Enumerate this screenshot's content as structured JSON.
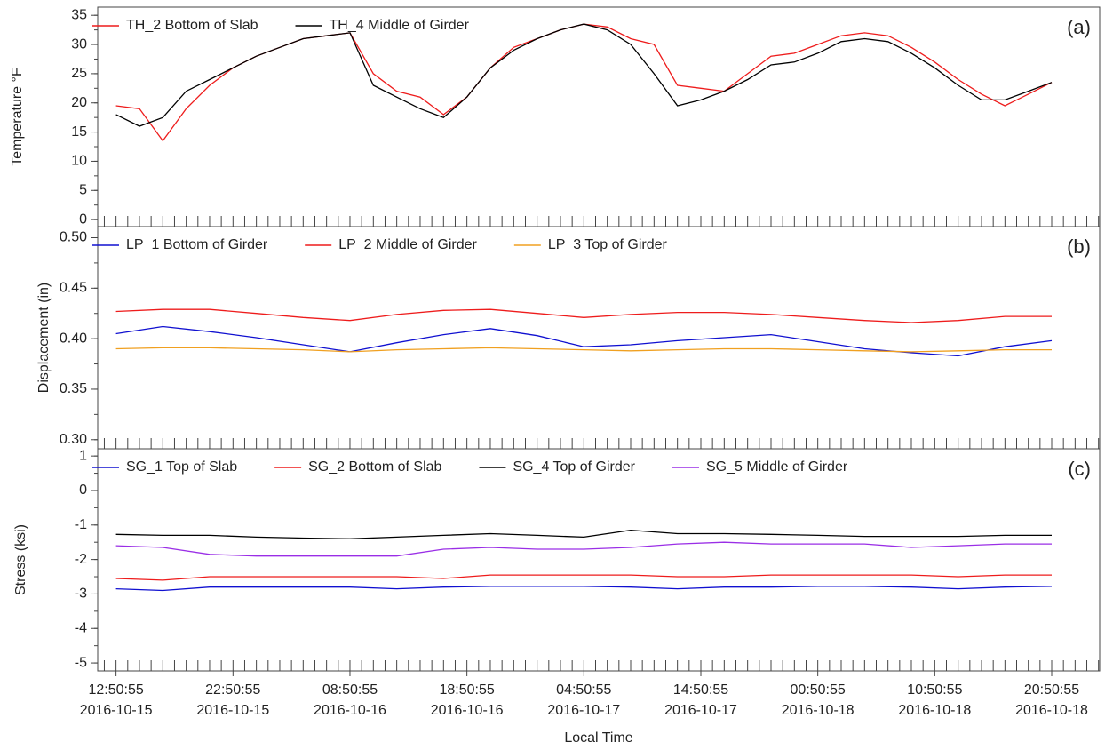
{
  "chart_data": [
    {
      "type": "line",
      "ylabel": "Temperature °F",
      "annotation": "(a)",
      "xlim": [
        "2016-10-15 11:16:55",
        "2016-10-19 00:56:55"
      ],
      "xminor_step_hours": 1,
      "ylim": [
        -1.2,
        36.4
      ],
      "yticks": [
        0,
        5,
        10,
        15,
        20,
        25,
        30,
        35
      ],
      "yminor_step": 2.5,
      "x": [
        "2016-10-15 12:50:55",
        "2016-10-15 14:50:55",
        "2016-10-15 16:50:55",
        "2016-10-15 18:50:55",
        "2016-10-15 20:50:55",
        "2016-10-15 22:50:55",
        "2016-10-16 00:50:55",
        "2016-10-16 02:50:55",
        "2016-10-16 04:50:55",
        "2016-10-16 06:50:55",
        "2016-10-16 08:50:55",
        "2016-10-16 10:50:55",
        "2016-10-16 12:50:55",
        "2016-10-16 14:50:55",
        "2016-10-16 16:50:55",
        "2016-10-16 18:50:55",
        "2016-10-16 20:50:55",
        "2016-10-16 22:50:55",
        "2016-10-17 00:50:55",
        "2016-10-17 02:50:55",
        "2016-10-17 04:50:55",
        "2016-10-17 06:50:55",
        "2016-10-17 08:50:55",
        "2016-10-17 10:50:55",
        "2016-10-17 12:50:55",
        "2016-10-17 14:50:55",
        "2016-10-17 16:50:55",
        "2016-10-17 18:50:55",
        "2016-10-17 20:50:55",
        "2016-10-17 22:50:55",
        "2016-10-18 00:50:55",
        "2016-10-18 02:50:55",
        "2016-10-18 04:50:55",
        "2016-10-18 06:50:55",
        "2016-10-18 08:50:55",
        "2016-10-18 10:50:55",
        "2016-10-18 12:50:55",
        "2016-10-18 14:50:55",
        "2016-10-18 16:50:55",
        "2016-10-18 18:50:55",
        "2016-10-18 20:50:55"
      ],
      "series": [
        {
          "name": "TH_2 Bottom of Slab",
          "color": "#ee1c1c",
          "values": [
            19.5,
            19,
            13.5,
            19,
            23,
            26,
            28,
            29.5,
            31,
            31.5,
            32,
            25,
            22,
            21,
            18,
            21,
            26,
            29.5,
            31,
            32.5,
            33.5,
            33,
            31,
            30,
            23,
            22.5,
            22,
            25,
            28,
            28.5,
            30,
            31.5,
            32,
            31.5,
            29.5,
            27,
            24,
            21.5,
            19.5,
            21.5,
            23.5
          ]
        },
        {
          "name": "TH_4 Middle of Girder",
          "color": "#000000",
          "values": [
            18,
            16,
            17.5,
            22,
            24,
            26,
            28,
            29.5,
            31,
            31.5,
            32,
            23,
            21,
            19,
            17.5,
            21,
            26,
            29,
            31,
            32.5,
            33.5,
            32.5,
            30,
            25,
            19.5,
            20.5,
            22,
            24,
            26.5,
            27,
            28.5,
            30.5,
            31,
            30.5,
            28.5,
            26,
            23,
            20.5,
            20.5,
            22,
            23.5
          ]
        }
      ]
    },
    {
      "type": "line",
      "ylabel": "Displacement (in)",
      "annotation": "(b)",
      "xlim": [
        "2016-10-15 11:16:55",
        "2016-10-19 00:56:55"
      ],
      "xminor_step_hours": 1,
      "ylim": [
        0.291,
        0.511
      ],
      "yticks": [
        {
          "value": 0.3,
          "label": "0.30"
        },
        {
          "value": 0.35,
          "label": "0.35"
        },
        {
          "value": 0.4,
          "label": "0.40"
        },
        {
          "value": 0.45,
          "label": "0.45"
        },
        {
          "value": 0.5,
          "label": "0.50"
        }
      ],
      "yminor_step": 0.025,
      "x": [
        "2016-10-15 12:50:55",
        "2016-10-15 16:50:55",
        "2016-10-15 20:50:55",
        "2016-10-16 00:50:55",
        "2016-10-16 04:50:55",
        "2016-10-16 08:50:55",
        "2016-10-16 12:50:55",
        "2016-10-16 16:50:55",
        "2016-10-16 20:50:55",
        "2016-10-17 00:50:55",
        "2016-10-17 04:50:55",
        "2016-10-17 08:50:55",
        "2016-10-17 12:50:55",
        "2016-10-17 16:50:55",
        "2016-10-17 20:50:55",
        "2016-10-18 00:50:55",
        "2016-10-18 04:50:55",
        "2016-10-18 08:50:55",
        "2016-10-18 12:50:55",
        "2016-10-18 16:50:55",
        "2016-10-18 20:50:55"
      ],
      "series": [
        {
          "name": "LP_1 Bottom of Girder",
          "color": "#1010d0",
          "values": [
            0.405,
            0.412,
            0.407,
            0.401,
            0.394,
            0.387,
            0.396,
            0.404,
            0.41,
            0.403,
            0.392,
            0.394,
            0.398,
            0.401,
            0.404,
            0.397,
            0.39,
            0.386,
            0.383,
            0.392,
            0.398
          ]
        },
        {
          "name": "LP_2 Middle of Girder",
          "color": "#ee1c1c",
          "values": [
            0.427,
            0.429,
            0.429,
            0.425,
            0.421,
            0.418,
            0.424,
            0.428,
            0.429,
            0.425,
            0.421,
            0.424,
            0.426,
            0.426,
            0.424,
            0.421,
            0.418,
            0.416,
            0.418,
            0.422,
            0.422
          ]
        },
        {
          "name": "LP_3 Top of Girder",
          "color": "#f0a020",
          "values": [
            0.39,
            0.391,
            0.391,
            0.39,
            0.389,
            0.387,
            0.389,
            0.39,
            0.391,
            0.39,
            0.389,
            0.388,
            0.389,
            0.39,
            0.39,
            0.389,
            0.388,
            0.387,
            0.388,
            0.389,
            0.389
          ]
        }
      ]
    },
    {
      "type": "line",
      "ylabel": "Stress (ksi)",
      "annotation": "(c)",
      "xlabel": "Local Time",
      "xlim": [
        "2016-10-15 11:16:55",
        "2016-10-19 00:56:55"
      ],
      "xminor_step_hours": 1,
      "xticks": [
        {
          "value": "2016-10-15 12:50:55",
          "label": [
            "12:50:55",
            "2016-10-15"
          ]
        },
        {
          "value": "2016-10-15 22:50:55",
          "label": [
            "22:50:55",
            "2016-10-15"
          ]
        },
        {
          "value": "2016-10-16 08:50:55",
          "label": [
            "08:50:55",
            "2016-10-16"
          ]
        },
        {
          "value": "2016-10-16 18:50:55",
          "label": [
            "18:50:55",
            "2016-10-16"
          ]
        },
        {
          "value": "2016-10-17 04:50:55",
          "label": [
            "04:50:55",
            "2016-10-17"
          ]
        },
        {
          "value": "2016-10-17 14:50:55",
          "label": [
            "14:50:55",
            "2016-10-17"
          ]
        },
        {
          "value": "2016-10-18 00:50:55",
          "label": [
            "00:50:55",
            "2016-10-18"
          ]
        },
        {
          "value": "2016-10-18 10:50:55",
          "label": [
            "10:50:55",
            "2016-10-18"
          ]
        },
        {
          "value": "2016-10-18 20:50:55",
          "label": [
            "20:50:55",
            "2016-10-18"
          ]
        }
      ],
      "ylim": [
        -5.23,
        1.21
      ],
      "yticks": [
        -5,
        -4,
        -3,
        -2,
        -1,
        0,
        1
      ],
      "yminor_step": 0.5,
      "x": [
        "2016-10-15 12:50:55",
        "2016-10-15 16:50:55",
        "2016-10-15 20:50:55",
        "2016-10-16 00:50:55",
        "2016-10-16 04:50:55",
        "2016-10-16 08:50:55",
        "2016-10-16 12:50:55",
        "2016-10-16 16:50:55",
        "2016-10-16 20:50:55",
        "2016-10-17 00:50:55",
        "2016-10-17 04:50:55",
        "2016-10-17 08:50:55",
        "2016-10-17 12:50:55",
        "2016-10-17 16:50:55",
        "2016-10-17 20:50:55",
        "2016-10-18 00:50:55",
        "2016-10-18 04:50:55",
        "2016-10-18 08:50:55",
        "2016-10-18 12:50:55",
        "2016-10-18 16:50:55",
        "2016-10-18 20:50:55"
      ],
      "series": [
        {
          "name": "SG_1 Top of Slab",
          "color": "#1010d0",
          "values": [
            -2.85,
            -2.9,
            -2.8,
            -2.8,
            -2.8,
            -2.8,
            -2.85,
            -2.8,
            -2.78,
            -2.78,
            -2.78,
            -2.8,
            -2.85,
            -2.8,
            -2.8,
            -2.78,
            -2.78,
            -2.8,
            -2.85,
            -2.8,
            -2.78
          ]
        },
        {
          "name": "SG_2 Bottom of Slab",
          "color": "#ee1c1c",
          "values": [
            -2.55,
            -2.6,
            -2.5,
            -2.5,
            -2.5,
            -2.5,
            -2.5,
            -2.55,
            -2.45,
            -2.45,
            -2.45,
            -2.45,
            -2.5,
            -2.5,
            -2.45,
            -2.45,
            -2.45,
            -2.45,
            -2.5,
            -2.45,
            -2.45
          ]
        },
        {
          "name": "SG_4 Top of Girder",
          "color": "#000000",
          "values": [
            -1.27,
            -1.3,
            -1.3,
            -1.35,
            -1.38,
            -1.4,
            -1.35,
            -1.3,
            -1.25,
            -1.3,
            -1.35,
            -1.15,
            -1.25,
            -1.25,
            -1.27,
            -1.3,
            -1.33,
            -1.33,
            -1.33,
            -1.3,
            -1.3
          ]
        },
        {
          "name": "SG_5 Middle of Girder",
          "color": "#9a2ee6",
          "values": [
            -1.6,
            -1.65,
            -1.85,
            -1.9,
            -1.9,
            -1.9,
            -1.9,
            -1.7,
            -1.65,
            -1.7,
            -1.7,
            -1.65,
            -1.55,
            -1.5,
            -1.55,
            -1.55,
            -1.55,
            -1.65,
            -1.6,
            -1.55,
            -1.55
          ]
        }
      ]
    }
  ]
}
